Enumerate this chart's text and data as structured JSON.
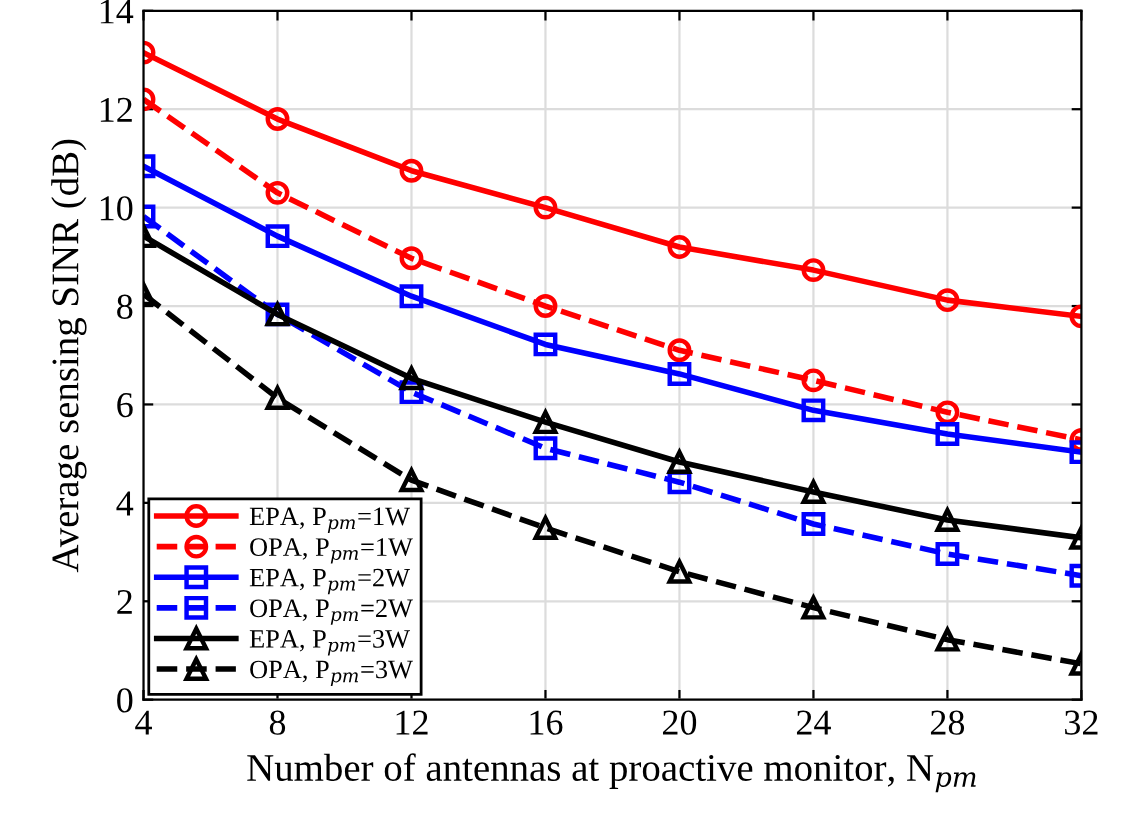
{
  "chart_data": {
    "type": "line",
    "xlabel": "Number of antennas at proactive monitor, N$_{pm}$",
    "ylabel": "Average sensing SINR (dB)",
    "x": [
      4,
      8,
      12,
      16,
      20,
      24,
      28,
      32
    ],
    "series": [
      {
        "name": "EPA, P$_{pm}$=1W",
        "color": "#ff0000",
        "marker": "circle",
        "line_style": "solid",
        "values": [
          13.15,
          11.8,
          10.75,
          10.0,
          9.2,
          8.73,
          8.12,
          7.79
        ]
      },
      {
        "name": "OPA, P$_{pm}$=1W",
        "color": "#ff0000",
        "marker": "circle",
        "line_style": "dashed",
        "values": [
          12.2,
          10.3,
          8.97,
          8.0,
          7.1,
          6.49,
          5.84,
          5.28
        ]
      },
      {
        "name": "EPA, P$_{pm}$=2W",
        "color": "#0000ff",
        "marker": "square",
        "line_style": "solid",
        "values": [
          10.84,
          9.42,
          8.2,
          7.22,
          6.62,
          5.88,
          5.4,
          5.03
        ]
      },
      {
        "name": "OPA, P$_{pm}$=2W",
        "color": "#0000ff",
        "marker": "square",
        "line_style": "dashed",
        "values": [
          9.82,
          7.83,
          6.25,
          5.11,
          4.42,
          3.57,
          2.96,
          2.52
        ]
      },
      {
        "name": "EPA, P$_{pm}$=3W",
        "color": "#000000",
        "marker": "triangle",
        "line_style": "solid",
        "values": [
          9.42,
          7.83,
          6.53,
          5.64,
          4.83,
          4.22,
          3.65,
          3.29
        ]
      },
      {
        "name": "OPA, P$_{pm}$=3W",
        "color": "#000000",
        "marker": "triangle",
        "line_style": "dashed",
        "values": [
          8.24,
          6.13,
          4.46,
          3.49,
          2.6,
          1.87,
          1.22,
          0.73
        ]
      }
    ],
    "xlim": [
      4,
      32
    ],
    "xticks": [
      4,
      8,
      12,
      16,
      20,
      24,
      28,
      32
    ],
    "ylim": [
      0,
      14
    ],
    "yticks": [
      0,
      2,
      4,
      6,
      8,
      10,
      12,
      14
    ],
    "grid": true,
    "legend": "bottom left"
  }
}
